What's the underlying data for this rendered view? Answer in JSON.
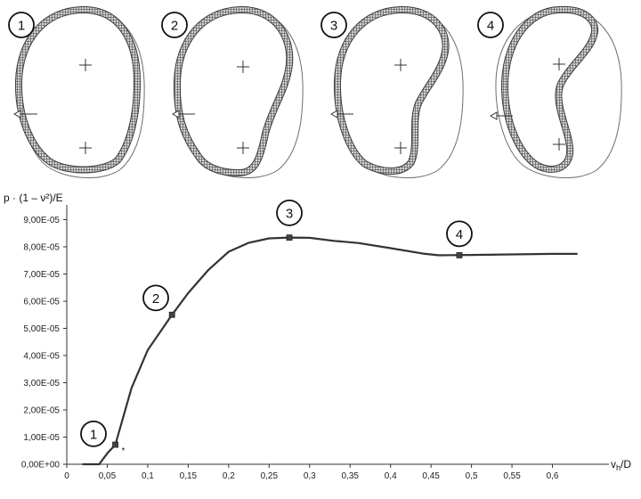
{
  "chart_data": {
    "type": "line",
    "ylabel": "p · (1 – ν²)/E",
    "xlabel": "vh/D",
    "xlabel_main": "v",
    "xlabel_sub": "h",
    "xlabel_tail": "/D",
    "xlim": [
      0,
      0.65
    ],
    "ylim": [
      0,
      0.0001
    ],
    "x_ticks": [
      0,
      0.05,
      0.1,
      0.15,
      0.2,
      0.25,
      0.3,
      0.35,
      0.4,
      0.45,
      0.5,
      0.55,
      0.6
    ],
    "x_tick_labels": [
      "0",
      "0,05",
      "0,1",
      "0,15",
      "0,2",
      "0,25",
      "0,3",
      "0,35",
      "0,4",
      "0,45",
      "0,5",
      "0,55",
      "0,6"
    ],
    "y_ticks": [
      0,
      1e-05,
      2e-05,
      3e-05,
      4e-05,
      5e-05,
      6e-05,
      7e-05,
      8e-05,
      9e-05
    ],
    "y_tick_labels": [
      "0,00E+00",
      "1,00E-05",
      "2,00E-05",
      "3,00E-05",
      "4,00E-05",
      "5,00E-05",
      "6,00E-05",
      "7,00E-05",
      "8,00E-05",
      "9,00E-05"
    ],
    "series": [
      {
        "x": [
          0.02,
          0.04,
          0.05,
          0.06,
          0.08,
          0.1,
          0.13,
          0.15,
          0.175,
          0.2,
          0.225,
          0.25,
          0.275,
          0.3,
          0.33,
          0.36,
          0.4,
          0.44,
          0.46,
          0.5,
          0.55,
          0.6,
          0.63
        ],
        "y": [
          0,
          0,
          4e-06,
          7.2e-06,
          2.8e-05,
          4.2e-05,
          5.5e-05,
          6.3e-05,
          7.15e-05,
          7.82e-05,
          8.15e-05,
          8.31e-05,
          8.34e-05,
          8.33e-05,
          8.22e-05,
          8.14e-05,
          7.95e-05,
          7.75e-05,
          7.69e-05,
          7.7e-05,
          7.72e-05,
          7.74e-05,
          7.74e-05
        ],
        "color": "#333333"
      }
    ],
    "markers": [
      {
        "label": "1",
        "x": 0.06,
        "y": 7.2e-06,
        "badge_x": 0.033,
        "badge_y": 1.12e-05,
        "note": "*"
      },
      {
        "label": "2",
        "x": 0.13,
        "y": 5.5e-05,
        "badge_x": 0.11,
        "badge_y": 6.12e-05,
        "note": ""
      },
      {
        "label": "3",
        "x": 0.275,
        "y": 8.34e-05,
        "badge_x": 0.275,
        "badge_y": 9.25e-05,
        "note": ""
      },
      {
        "label": "4",
        "x": 0.485,
        "y": 7.69e-05,
        "badge_x": 0.485,
        "badge_y": 8.48e-05,
        "note": ""
      }
    ],
    "grid": false,
    "legend": "none"
  },
  "panels": [
    {
      "label": "1"
    },
    {
      "label": "2"
    },
    {
      "label": "3"
    },
    {
      "label": "4"
    }
  ]
}
